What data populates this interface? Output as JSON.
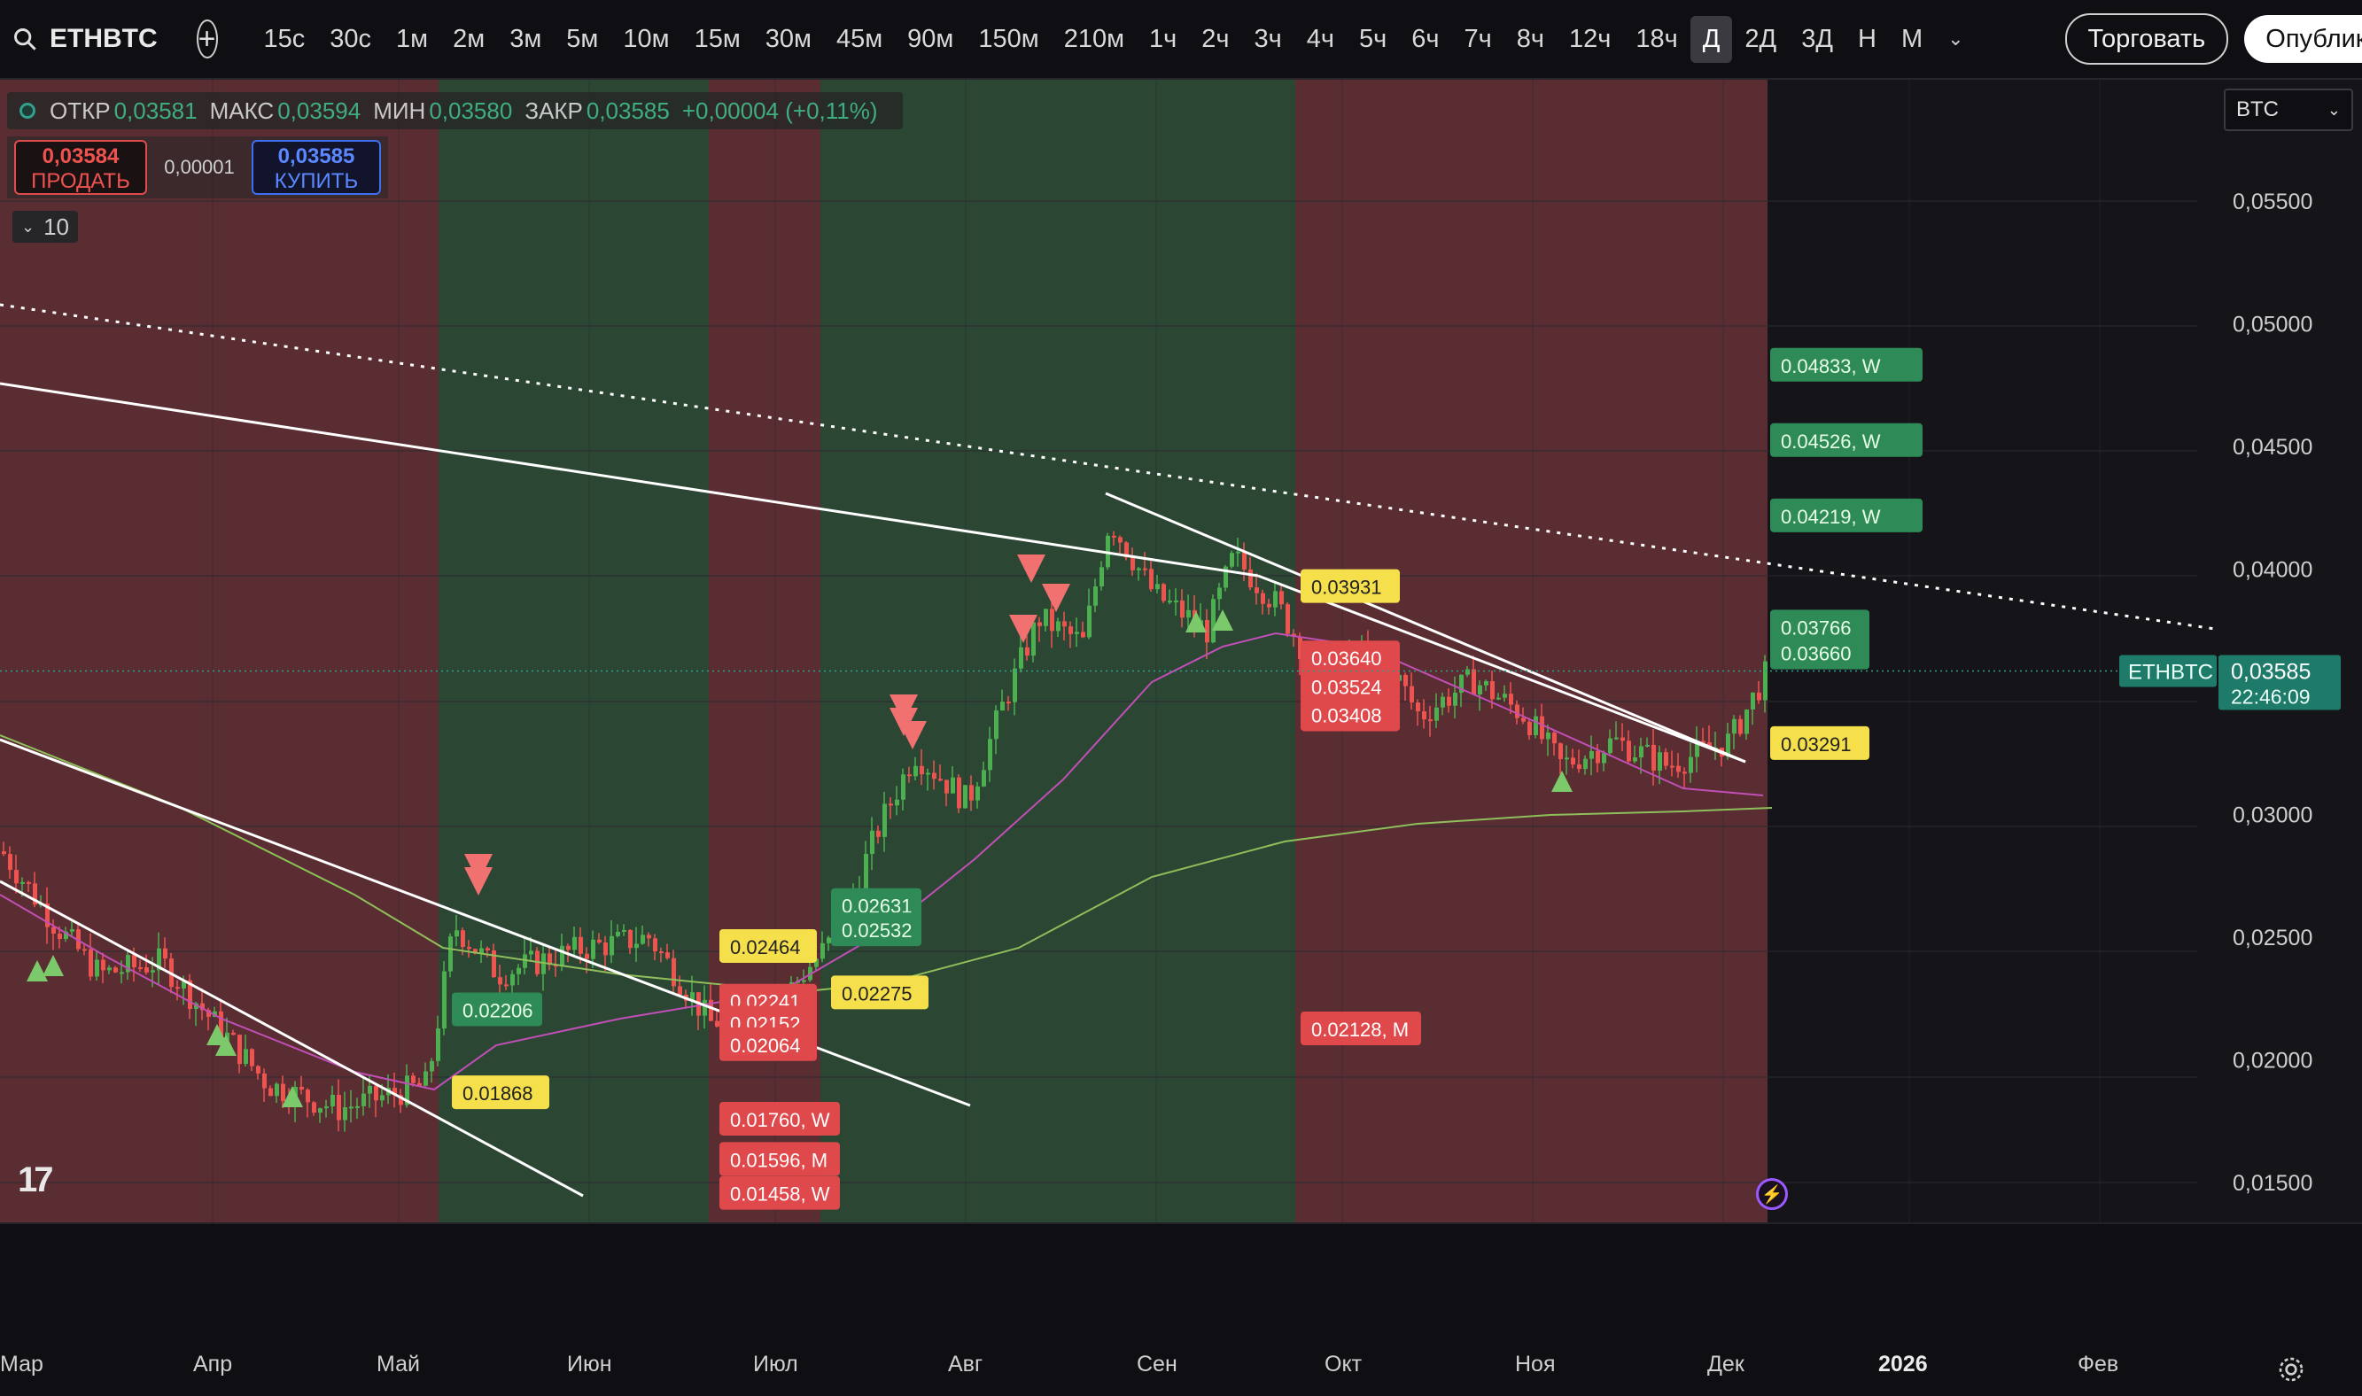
{
  "toolbar": {
    "symbol": "ETHBTC",
    "timeframes": [
      "15с",
      "30с",
      "1м",
      "2м",
      "3м",
      "5м",
      "10м",
      "15м",
      "30м",
      "45м",
      "90м",
      "150м",
      "210м",
      "1ч",
      "2ч",
      "3ч",
      "4ч",
      "5ч",
      "6ч",
      "7ч",
      "8ч",
      "12ч",
      "18ч",
      "Д",
      "2Д",
      "3Д",
      "Н",
      "М"
    ],
    "active_timeframe": "Д",
    "trade_label": "Торговать",
    "publish_label": "Опублико"
  },
  "legend": {
    "open_label": "ОТКР",
    "open": "0,03581",
    "high_label": "МАКС",
    "high": "0,03594",
    "low_label": "МИН",
    "low": "0,03580",
    "close_label": "ЗАКР",
    "close": "0,03585",
    "change": "+0,00004 (+0,11%)"
  },
  "trade_panel": {
    "sell_price": "0,03584",
    "sell_label": "ПРОДАТЬ",
    "spread": "0,00001",
    "buy_price": "0,03585",
    "buy_label": "КУПИТЬ"
  },
  "collapse_count": "10",
  "currency": "BTC",
  "price_axis": {
    "ticks": [
      "0,05500",
      "0,05000",
      "0,04500",
      "0,04000",
      "0,03000",
      "0,02500",
      "0,02000",
      "0,01500"
    ],
    "tick_values": [
      0.055,
      0.05,
      0.045,
      0.04,
      0.03,
      0.025,
      0.02,
      0.015
    ],
    "last_symbol": "ETHBTC",
    "last_price": "0,03585",
    "countdown": "22:46:09"
  },
  "time_axis": {
    "labels": [
      "Мар",
      "Апр",
      "Май",
      "Июн",
      "Июл",
      "Авг",
      "Сен",
      "Окт",
      "Ноя",
      "Дек",
      "2026",
      "Фев"
    ],
    "bold": "2026"
  },
  "level_labels": {
    "resistance_w": [
      "0.04833, W",
      "0.04526, W",
      "0.04219, W"
    ],
    "green_right": [
      "0.03766",
      "0.03660"
    ],
    "yellow_right": "0.03291",
    "yellow_mid": "0.03931",
    "red_mid": [
      "0.03640",
      "0.03524",
      "0.03408"
    ],
    "red_month": "0.02128, M",
    "green_left": [
      "0.02631",
      "0.02532",
      "0.02206"
    ],
    "yellow_left": [
      "0.02464",
      "0.02275",
      "0.01868"
    ],
    "red_left": [
      "0.02241",
      "0.02152",
      "0.02064"
    ],
    "red_support": [
      "0.01760, W",
      "0.01596, M",
      "0.01458, W"
    ]
  },
  "colors": {
    "bull": "#4caf50",
    "bear": "#ef5350",
    "bg_red_zone": "#5a2d33",
    "bg_green_zone": "#2c4634",
    "ma_fast": "#c14fb6",
    "ma_slow": "#8fbf5a",
    "accent_green_label": "#2e8b57",
    "yellow_label": "#f5e04b"
  }
}
